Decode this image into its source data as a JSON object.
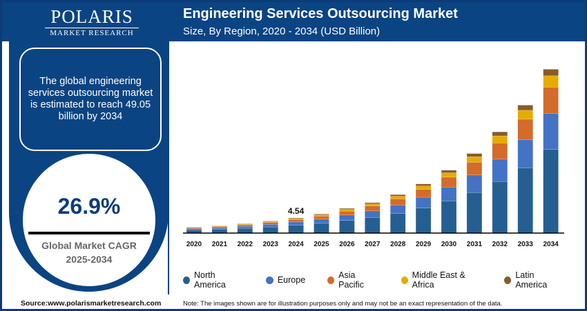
{
  "brand": {
    "logo_main": "POLARIS",
    "logo_sub": "MARKET RESEARCH"
  },
  "header": {
    "title": "Engineering Services Outsourcing Market",
    "subtitle": "Size, By Region, 2020 - 2034 (USD Billion)"
  },
  "sidebar": {
    "summary": "The global engineering services outsourcing market is estimated to reach 49.05 billion by 2034",
    "cagr_value": "26.9%",
    "cagr_label": "Global Market CAGR",
    "cagr_period": "2025-2034"
  },
  "footer": {
    "source": "Source:www.polarismarketresearch.com",
    "note": "Note: The images shown are for illustration purposes only and may not be an exact representation of the data."
  },
  "chart_data": {
    "type": "bar",
    "stacked": true,
    "title": "Engineering Services Outsourcing Market",
    "subtitle": "Size, By Region, 2020 - 2034 (USD Billion)",
    "categories": [
      "2020",
      "2021",
      "2022",
      "2023",
      "2024",
      "2025",
      "2026",
      "2027",
      "2028",
      "2029",
      "2030",
      "2031",
      "2032",
      "2033",
      "2034"
    ],
    "ylim": [
      0,
      50
    ],
    "grid": false,
    "legend_placement": "bottom",
    "annotations": [
      {
        "category": "2024",
        "label": "4.54"
      }
    ],
    "series": [
      {
        "name": "North America",
        "color": "#255f91",
        "values": [
          0.92,
          1.12,
          1.43,
          1.84,
          2.32,
          2.91,
          3.77,
          4.64,
          5.87,
          7.5,
          9.59,
          12.14,
          15.45,
          19.53,
          25.02
        ]
      },
      {
        "name": "Europe",
        "color": "#4472c4",
        "values": [
          0.4,
          0.48,
          0.62,
          0.79,
          1.0,
          1.25,
          1.63,
          2.0,
          2.53,
          3.23,
          4.14,
          5.24,
          6.67,
          8.43,
          10.79
        ]
      },
      {
        "name": "Asia Pacific",
        "color": "#d46b2b",
        "values": [
          0.29,
          0.35,
          0.45,
          0.58,
          0.73,
          0.91,
          1.18,
          1.46,
          1.84,
          2.35,
          3.01,
          3.81,
          4.85,
          6.13,
          7.85
        ]
      },
      {
        "name": "Middle East & Africa",
        "color": "#e5ac00",
        "values": [
          0.13,
          0.15,
          0.2,
          0.25,
          0.32,
          0.4,
          0.52,
          0.64,
          0.81,
          1.03,
          1.32,
          1.67,
          2.12,
          2.68,
          3.43
        ]
      },
      {
        "name": "Latin America",
        "color": "#8b5a2b",
        "values": [
          0.07,
          0.09,
          0.11,
          0.14,
          0.18,
          0.23,
          0.3,
          0.36,
          0.46,
          0.59,
          0.75,
          0.95,
          1.21,
          1.53,
          1.96
        ]
      }
    ]
  }
}
